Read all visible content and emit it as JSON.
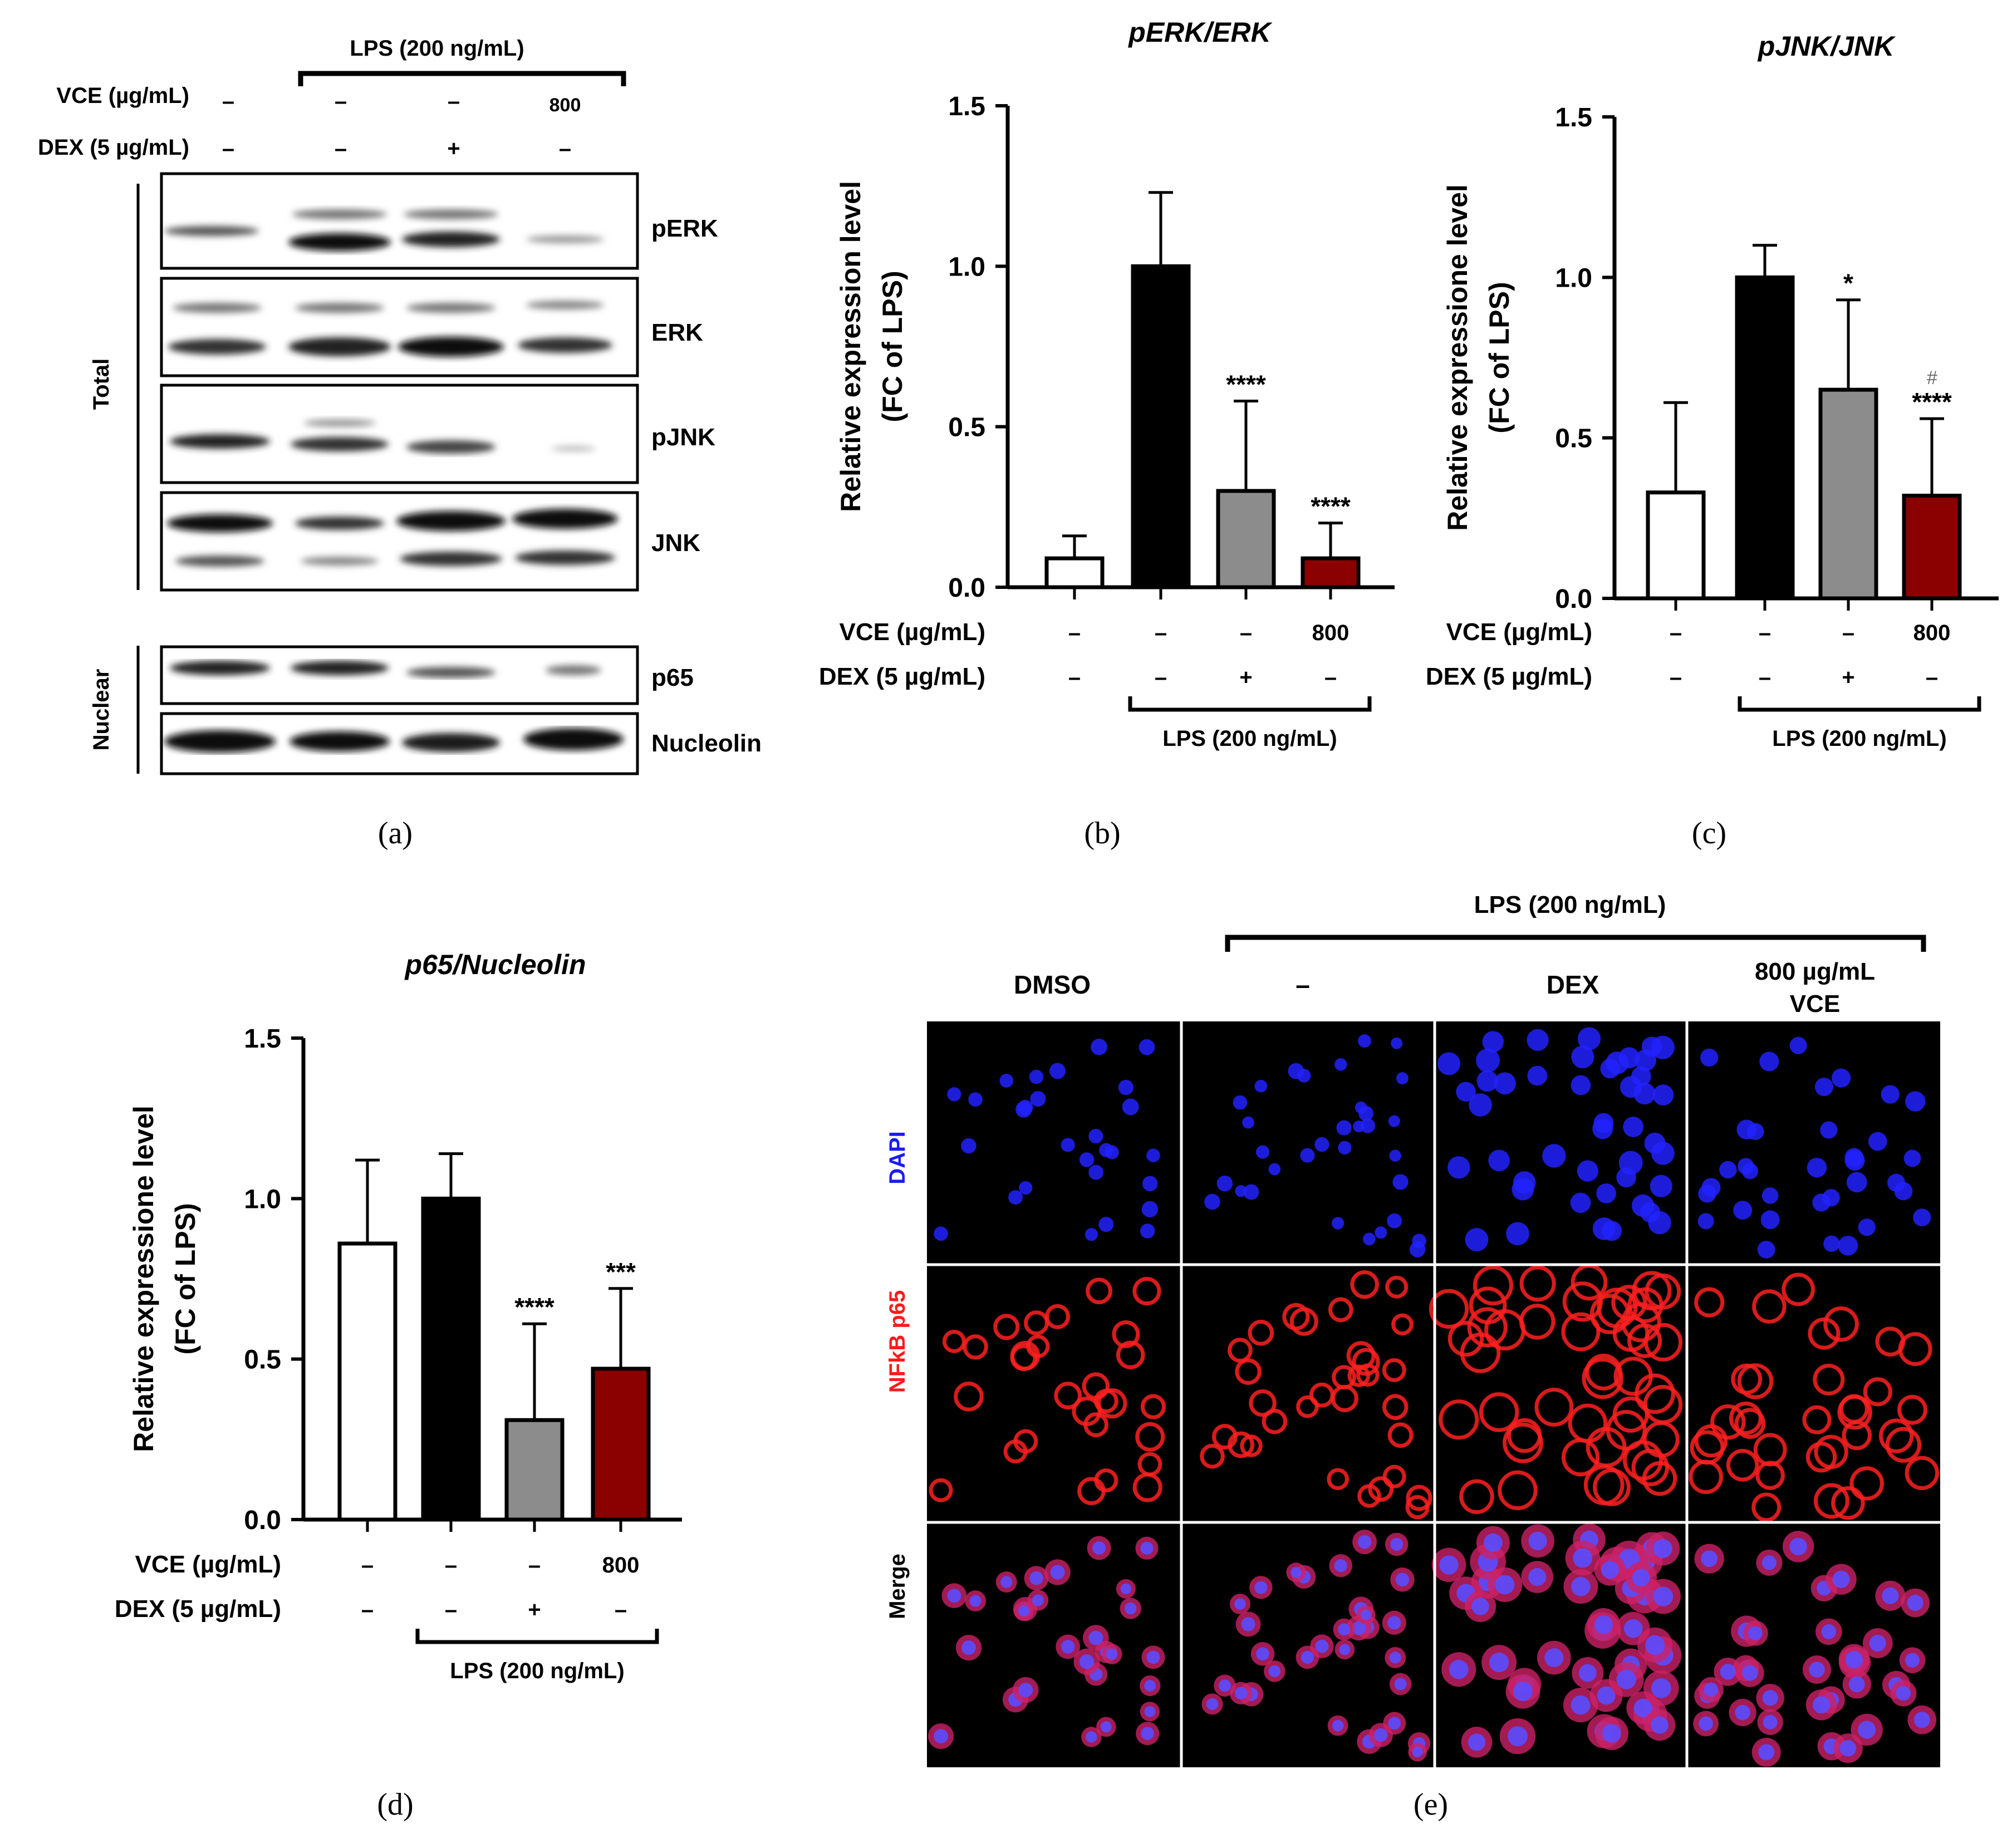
{
  "shared": {
    "lps_label": "LPS (200 ng/mL)",
    "vce_label": "VCE (µg/mL)",
    "dex_label": "DEX (5 µg/mL)",
    "minus": "–",
    "plus": "+",
    "vce_dose": "800"
  },
  "panels": {
    "a": {
      "caption": "(a)",
      "total_label": "Total",
      "nuclear_label": "Nuclear",
      "blots": [
        "pERK",
        "ERK",
        "pJNK",
        "JNK",
        "p65",
        "Nucleolin"
      ]
    },
    "b": {
      "caption": "(b)"
    },
    "c": {
      "caption": "(c)"
    },
    "d": {
      "caption": "(d)"
    },
    "e": {
      "caption": "(e)",
      "columns": [
        "DMSO",
        "–",
        "DEX",
        "800 µg/mL",
        "VCE"
      ],
      "rows": [
        "DAPI",
        "NFkB p65",
        "Merge"
      ]
    }
  },
  "colors": {
    "control": "#ffffff",
    "lps": "#000000",
    "dex": "#8c8c8c",
    "vce": "#8b0000",
    "dapi": "#2222ff",
    "p65": "#ff2020"
  },
  "chart_data": [
    {
      "id": "b",
      "type": "bar",
      "title": "pERK/ERK",
      "ylabel": [
        "Relative expression level",
        "(FC of LPS)"
      ],
      "ylim": [
        0,
        1.5
      ],
      "yticks": [
        "0.0",
        "0.5",
        "1.0",
        "1.5"
      ],
      "categories": [
        "control",
        "LPS",
        "LPS+DEX",
        "LPS+VCE 800"
      ],
      "values": [
        0.09,
        1.0,
        0.3,
        0.09
      ],
      "errors": [
        0.07,
        0.23,
        0.28,
        0.11
      ],
      "annotations": [
        "",
        "",
        "****",
        "****"
      ]
    },
    {
      "id": "c",
      "type": "bar",
      "title": "pJNK/JNK",
      "ylabel": [
        "Relative expressione level",
        "(FC of LPS)"
      ],
      "ylim": [
        0,
        1.5
      ],
      "yticks": [
        "0.0",
        "0.5",
        "1.0",
        "1.5"
      ],
      "categories": [
        "control",
        "LPS",
        "LPS+DEX",
        "LPS+VCE 800"
      ],
      "values": [
        0.33,
        1.0,
        0.65,
        0.32
      ],
      "errors": [
        0.28,
        0.1,
        0.28,
        0.24
      ],
      "annotations": [
        "",
        "",
        "*",
        "****"
      ],
      "extra_annotations": [
        "",
        "",
        "",
        "#"
      ]
    },
    {
      "id": "d",
      "type": "bar",
      "title": "p65/Nucleolin",
      "ylabel": [
        "Relative expressione level",
        "(FC of LPS)"
      ],
      "ylim": [
        0,
        1.5
      ],
      "yticks": [
        "0.0",
        "0.5",
        "1.0",
        "1.5"
      ],
      "categories": [
        "control",
        "LPS",
        "LPS+DEX",
        "LPS+VCE 800"
      ],
      "values": [
        0.86,
        1.0,
        0.31,
        0.47
      ],
      "errors": [
        0.26,
        0.14,
        0.3,
        0.25
      ],
      "annotations": [
        "",
        "",
        "****",
        "***"
      ]
    }
  ]
}
